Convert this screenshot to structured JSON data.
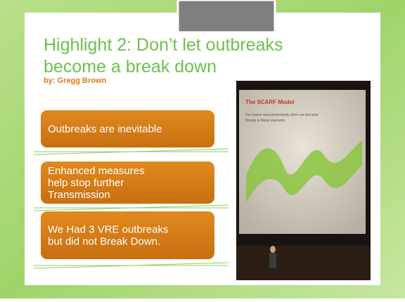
{
  "slide": {
    "title_lines": [
      "Highlight 2: Don’t let outbreaks",
      "become a break down"
    ],
    "byline": "by: Gregg Brown",
    "boxes": [
      [
        "Outbreaks are inevitable"
      ],
      [
        "Enhanced measures",
        "help stop further",
        "Transmission"
      ],
      [
        "We Had 3 VRE outbreaks",
        "but did not Break Down."
      ]
    ],
    "photo": {
      "screen_title": "The SCARF Model",
      "screen_text": [
        "Our brains react protectively when we perceive",
        "threats to these elements:"
      ]
    }
  }
}
